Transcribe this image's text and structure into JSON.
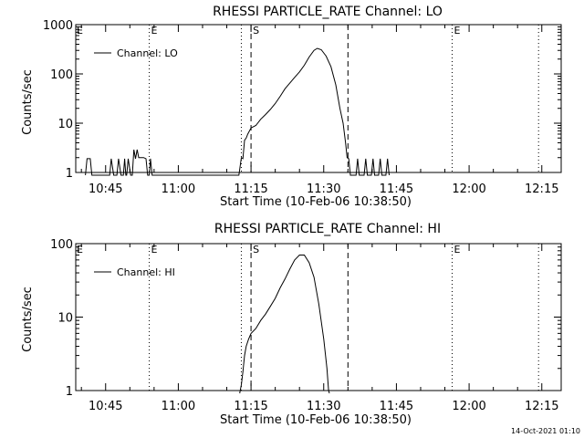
{
  "footer": {
    "date_stamp": "14-Oct-2021 01:10"
  },
  "chart_data": [
    {
      "type": "line",
      "title": "RHESSI PARTICLE_RATE Channel: LO",
      "xlabel": "Start Time (10-Feb-06 10:38:50)",
      "ylabel": "Counts/sec",
      "yscale": "log",
      "ylim": [
        1,
        1000
      ],
      "xlim": [
        "10:38:50",
        "12:19:00"
      ],
      "xticks": [
        "10:45",
        "11:00",
        "11:15",
        "11:30",
        "11:45",
        "12:00",
        "12:15"
      ],
      "yticks": [
        "1",
        "10",
        "100",
        "1000"
      ],
      "legend": {
        "label": "Channel: LO",
        "placement": "top-left"
      },
      "markers": [
        {
          "time": "10:54:00",
          "label": "E",
          "style": "dotted"
        },
        {
          "time": "11:13:00",
          "label": "",
          "style": "dotted"
        },
        {
          "time": "11:15:00",
          "label": "S",
          "style": "dashed"
        },
        {
          "time": "11:35:00",
          "label": "",
          "style": "dashed"
        },
        {
          "time": "11:56:30",
          "label": "E",
          "style": "dotted"
        },
        {
          "time": "12:14:20",
          "label": "",
          "style": "dotted"
        }
      ],
      "edge_labels": [
        {
          "time": "10:38:50",
          "label": "E"
        }
      ],
      "series": [
        {
          "name": "Channel: LO",
          "points": [
            [
              "10:40:50",
              0
            ],
            [
              "10:41:10",
              1.9
            ],
            [
              "10:41:50",
              1.9
            ],
            [
              "10:42:10",
              0
            ],
            [
              "10:45:50",
              0
            ],
            [
              "10:46:10",
              1.9
            ],
            [
              "10:46:40",
              0
            ],
            [
              "10:47:20",
              0
            ],
            [
              "10:47:40",
              1.9
            ],
            [
              "10:48:10",
              0
            ],
            [
              "10:48:40",
              0
            ],
            [
              "10:48:55",
              1.9
            ],
            [
              "10:49:10",
              0
            ],
            [
              "10:49:20",
              0
            ],
            [
              "10:49:40",
              1.9
            ],
            [
              "10:50:10",
              0
            ],
            [
              "10:50:30",
              0
            ],
            [
              "10:50:50",
              2.9
            ],
            [
              "10:51:10",
              1.9
            ],
            [
              "10:51:30",
              2.9
            ],
            [
              "10:51:50",
              2.0
            ],
            [
              "10:52:50",
              2.0
            ],
            [
              "10:53:20",
              1.9
            ],
            [
              "10:53:40",
              0
            ],
            [
              "10:54:00",
              0
            ],
            [
              "10:54:15",
              1.9
            ],
            [
              "10:54:35",
              0
            ],
            [
              "11:12:30",
              0
            ],
            [
              "11:13:00",
              2.0
            ],
            [
              "11:13:20",
              1.9
            ],
            [
              "11:13:40",
              4.5
            ],
            [
              "11:14:00",
              5.0
            ],
            [
              "11:14:20",
              6.0
            ],
            [
              "11:15:00",
              8.0
            ],
            [
              "11:16:00",
              9.0
            ],
            [
              "11:17:00",
              12
            ],
            [
              "11:18:00",
              15
            ],
            [
              "11:19:00",
              19
            ],
            [
              "11:20:00",
              25
            ],
            [
              "11:21:00",
              35
            ],
            [
              "11:22:00",
              50
            ],
            [
              "11:23:00",
              65
            ],
            [
              "11:24:00",
              85
            ],
            [
              "11:25:00",
              110
            ],
            [
              "11:26:00",
              150
            ],
            [
              "11:27:00",
              220
            ],
            [
              "11:28:00",
              300
            ],
            [
              "11:28:40",
              330
            ],
            [
              "11:29:30",
              310
            ],
            [
              "11:30:30",
              230
            ],
            [
              "11:31:30",
              140
            ],
            [
              "11:32:30",
              60
            ],
            [
              "11:33:20",
              20
            ],
            [
              "11:34:00",
              10
            ],
            [
              "11:34:30",
              4.0
            ],
            [
              "11:34:50",
              2.0
            ],
            [
              "11:35:10",
              1.9
            ],
            [
              "11:35:30",
              0
            ],
            [
              "11:36:40",
              0
            ],
            [
              "11:37:00",
              1.9
            ],
            [
              "11:37:20",
              0
            ],
            [
              "11:38:20",
              0
            ],
            [
              "11:38:40",
              1.9
            ],
            [
              "11:39:00",
              0
            ],
            [
              "11:39:50",
              0
            ],
            [
              "11:40:10",
              1.9
            ],
            [
              "11:40:30",
              0
            ],
            [
              "11:41:20",
              0
            ],
            [
              "11:41:40",
              1.9
            ],
            [
              "11:42:00",
              0
            ],
            [
              "11:42:50",
              0
            ],
            [
              "11:43:10",
              1.9
            ],
            [
              "11:43:30",
              0
            ]
          ]
        }
      ]
    },
    {
      "type": "line",
      "title": "RHESSI PARTICLE_RATE Channel: HI",
      "xlabel": "Start Time (10-Feb-06 10:38:50)",
      "ylabel": "Counts/sec",
      "yscale": "log",
      "ylim": [
        1,
        100
      ],
      "xlim": [
        "10:38:50",
        "12:19:00"
      ],
      "xticks": [
        "10:45",
        "11:00",
        "11:15",
        "11:30",
        "11:45",
        "12:00",
        "12:15"
      ],
      "yticks": [
        "1",
        "10",
        "100"
      ],
      "legend": {
        "label": "Channel: HI",
        "placement": "top-left"
      },
      "markers": [
        {
          "time": "10:54:00",
          "label": "E",
          "style": "dotted"
        },
        {
          "time": "11:13:00",
          "label": "",
          "style": "dotted"
        },
        {
          "time": "11:15:00",
          "label": "S",
          "style": "dashed"
        },
        {
          "time": "11:35:00",
          "label": "",
          "style": "dashed"
        },
        {
          "time": "11:56:30",
          "label": "E",
          "style": "dotted"
        },
        {
          "time": "12:14:20",
          "label": "",
          "style": "dotted"
        }
      ],
      "edge_labels": [
        {
          "time": "10:38:50",
          "label": "E"
        }
      ],
      "series": [
        {
          "name": "Channel: HI",
          "points": [
            [
              "11:12:40",
              0.8
            ],
            [
              "11:13:00",
              1.2
            ],
            [
              "11:13:20",
              1.8
            ],
            [
              "11:13:40",
              3.0
            ],
            [
              "11:14:00",
              4.0
            ],
            [
              "11:14:30",
              5.0
            ],
            [
              "11:15:00",
              6.0
            ],
            [
              "11:16:00",
              7.0
            ],
            [
              "11:17:00",
              9.0
            ],
            [
              "11:18:00",
              11
            ],
            [
              "11:19:00",
              14
            ],
            [
              "11:20:00",
              18
            ],
            [
              "11:21:00",
              25
            ],
            [
              "11:22:00",
              33
            ],
            [
              "11:23:00",
              45
            ],
            [
              "11:24:00",
              60
            ],
            [
              "11:25:00",
              70
            ],
            [
              "11:26:00",
              70
            ],
            [
              "11:27:00",
              55
            ],
            [
              "11:28:00",
              35
            ],
            [
              "11:29:00",
              15
            ],
            [
              "11:30:00",
              5.0
            ],
            [
              "11:30:40",
              2.0
            ],
            [
              "11:31:00",
              1.0
            ],
            [
              "11:31:10",
              0.8
            ]
          ]
        }
      ]
    }
  ]
}
